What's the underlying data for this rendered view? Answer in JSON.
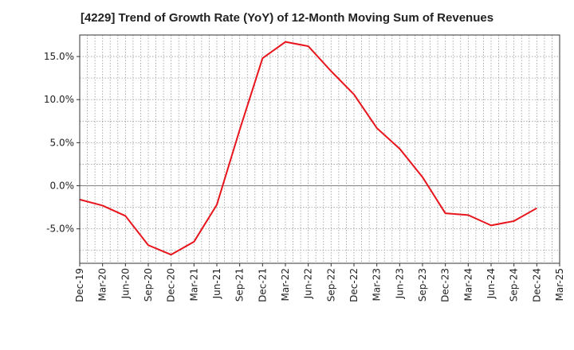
{
  "chart_data": {
    "type": "line",
    "title": "[4229]  Trend of Growth Rate (YoY) of 12-Month Moving Sum of Revenues",
    "xlabel": "",
    "ylabel": "",
    "x_tick_labels": [
      "Dec-19",
      "Mar-20",
      "Jun-20",
      "Sep-20",
      "Dec-20",
      "Mar-21",
      "Jun-21",
      "Sep-21",
      "Dec-21",
      "Mar-22",
      "Jun-22",
      "Sep-22",
      "Dec-22",
      "Mar-23",
      "Jun-23",
      "Sep-23",
      "Dec-23",
      "Mar-24",
      "Jun-24",
      "Sep-24",
      "Dec-24",
      "Mar-25"
    ],
    "y_ticks": [
      15,
      10,
      5,
      0,
      -5
    ],
    "y_tick_labels": [
      "15.0%",
      "10.0%",
      "5.0%",
      "0.0%",
      "-5.0%"
    ],
    "ylim": [
      -9,
      17.5
    ],
    "grid": true,
    "series": [
      {
        "color": "#e8141c",
        "x": [
          "Dec-19",
          "Mar-20",
          "Jun-20",
          "Sep-20",
          "Dec-20",
          "Mar-21",
          "Jun-21",
          "Sep-21",
          "Dec-21",
          "Mar-22",
          "Jun-22",
          "Sep-22",
          "Dec-22",
          "Mar-23",
          "Jun-23",
          "Sep-23",
          "Dec-23",
          "Mar-24",
          "Jun-24",
          "Sep-24",
          "Dec-24"
        ],
        "values": [
          -1.6,
          -2.3,
          -3.5,
          -6.9,
          -8.0,
          -6.5,
          -2.2,
          6.5,
          14.8,
          16.7,
          16.2,
          13.3,
          10.6,
          6.7,
          4.3,
          1.0,
          -3.2,
          -3.4,
          -4.6,
          -4.1,
          -2.6
        ]
      }
    ]
  }
}
